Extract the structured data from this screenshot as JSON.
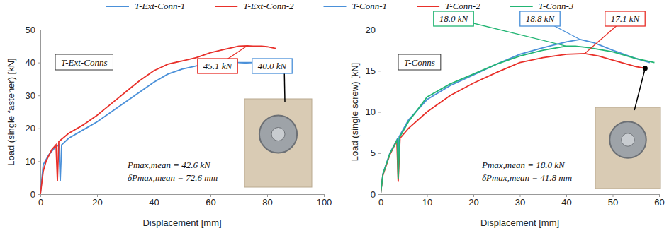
{
  "chart_data": [
    {
      "type": "line",
      "x_label": "Displacement [mm]",
      "y_label": "Load (single fastener) [kN]",
      "xlim": [
        0,
        100
      ],
      "xticks": [
        0,
        20,
        40,
        60,
        80,
        100
      ],
      "ylim": [
        0,
        50
      ],
      "yticks": [
        0,
        10,
        20,
        30,
        40,
        50
      ],
      "grid": false,
      "panel_label": "T-Ext-Conns",
      "summary": [
        "Pmax,mean = 42.6 kN",
        "δPmax,mean = 72.6 mm"
      ],
      "annotations": [
        {
          "text": "45.1 kN",
          "series": "T-Ext-Conn-2"
        },
        {
          "text": "40.0 kN",
          "series": "T-Ext-Conn-1"
        }
      ],
      "series": [
        {
          "name": "T-Ext-Conn-1",
          "color": "#4a90d9",
          "x": [
            0,
            1,
            3,
            5,
            6.5,
            7,
            7.5,
            10,
            15,
            20,
            25,
            30,
            35,
            40,
            45,
            50,
            55,
            60,
            65,
            70,
            75,
            80,
            83,
            86
          ],
          "values": [
            0,
            9,
            12,
            14,
            15,
            4,
            15,
            17,
            19.5,
            22,
            25,
            28,
            31,
            34,
            36.5,
            38,
            39,
            39.7,
            39.9,
            40,
            40,
            40,
            39.8,
            39.5
          ]
        },
        {
          "name": "T-Ext-Conn-2",
          "color": "#e8302a",
          "x": [
            0,
            1,
            2,
            4,
            5.5,
            6,
            6.5,
            10,
            15,
            20,
            25,
            30,
            35,
            40,
            45,
            50,
            55,
            60,
            65,
            70,
            73,
            75,
            78,
            80,
            83
          ],
          "values": [
            0,
            7,
            10,
            13.5,
            15,
            4,
            16,
            18.5,
            21,
            24,
            27.5,
            31,
            34.5,
            37.5,
            39.5,
            40.5,
            41.5,
            43,
            44,
            45,
            45.1,
            45,
            45,
            44.8,
            44.3
          ]
        }
      ]
    },
    {
      "type": "line",
      "x_label": "Displacement [mm]",
      "y_label": "Load (single screw) [kN]",
      "xlim": [
        0,
        60
      ],
      "xticks": [
        0,
        10,
        20,
        30,
        40,
        50,
        60
      ],
      "ylim": [
        0,
        20
      ],
      "yticks": [
        0,
        5,
        10,
        15,
        20
      ],
      "grid": false,
      "panel_label": "T-Conns",
      "summary": [
        "Pmax,mean = 18.0 kN",
        "δPmax,mean = 41.8 mm"
      ],
      "annotations": [
        {
          "text": "18.0 kN",
          "series": "T-Conn-3"
        },
        {
          "text": "18.8 kN",
          "series": "T-Conn-1"
        },
        {
          "text": "17.1 kN",
          "series": "T-Conn-2"
        }
      ],
      "series": [
        {
          "name": "T-Conn-1",
          "color": "#4a90d9",
          "x": [
            0,
            0.5,
            2,
            3.7,
            3.8,
            4,
            6,
            10,
            15,
            20,
            25,
            30,
            35,
            40,
            43,
            46,
            50,
            55,
            58
          ],
          "values": [
            0,
            2.5,
            5,
            6.8,
            2,
            7,
            9,
            11.5,
            13.2,
            14.5,
            15.8,
            17,
            17.8,
            18.5,
            18.8,
            18.4,
            17.5,
            16.5,
            16
          ]
        },
        {
          "name": "T-Conn-2",
          "color": "#e8302a",
          "x": [
            0,
            0.5,
            2,
            3.5,
            3.8,
            4.2,
            6,
            10,
            15,
            20,
            25,
            30,
            35,
            40,
            44,
            47,
            50,
            55,
            57
          ],
          "values": [
            0,
            2.3,
            4.8,
            6.5,
            1.5,
            6.8,
            8,
            10,
            12,
            13.5,
            14.8,
            16,
            16.6,
            17,
            17.1,
            16.8,
            16.3,
            15.5,
            15.3
          ]
        },
        {
          "name": "T-Conn-3",
          "color": "#22b573",
          "x": [
            0,
            0.5,
            2,
            3.6,
            3.8,
            4.1,
            6,
            10,
            15,
            20,
            25,
            30,
            35,
            40,
            42,
            45,
            50,
            55,
            59
          ],
          "values": [
            0,
            2.4,
            4.9,
            6.6,
            1.8,
            6.9,
            8.8,
            11.8,
            13.4,
            14.6,
            15.8,
            16.8,
            17.5,
            18,
            18,
            17.8,
            17.3,
            16.5,
            16
          ]
        }
      ]
    }
  ]
}
